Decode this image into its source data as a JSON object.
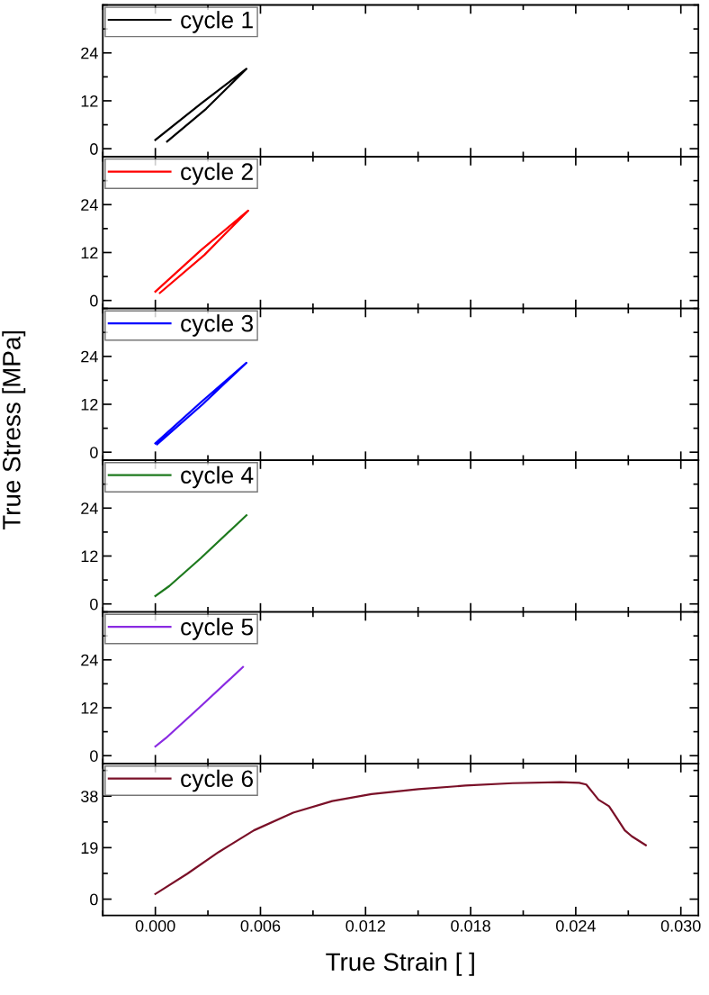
{
  "chart_data": [
    {
      "type": "line",
      "xlim": [
        -0.003,
        0.031
      ],
      "xticks": [
        0,
        0.006,
        0.012,
        0.018,
        0.024,
        0.03
      ],
      "ylim": [
        -2,
        36
      ],
      "yticks": [
        0,
        12,
        24
      ],
      "tick_labels": "y",
      "legend": "top left",
      "series": [
        {
          "name": "cycle 1",
          "color": "#000000",
          "x": [
            0.0,
            0.0026,
            0.0052,
            0.0029,
            0.00067
          ],
          "values": [
            2.2,
            11.3,
            20.0,
            10.0,
            1.8
          ]
        }
      ]
    },
    {
      "type": "line",
      "xlim": [
        -0.003,
        0.031
      ],
      "xticks": [
        0,
        0.006,
        0.012,
        0.018,
        0.024,
        0.03
      ],
      "ylim": [
        -2,
        36
      ],
      "yticks": [
        0,
        12,
        24
      ],
      "tick_labels": "y",
      "legend": "top left",
      "series": [
        {
          "name": "cycle 2",
          "color": "#ff0000",
          "x": [
            0.0,
            0.0026,
            0.0053,
            0.0028,
            0.00026
          ],
          "values": [
            2.2,
            12.6,
            22.5,
            11.4,
            1.9
          ]
        }
      ]
    },
    {
      "type": "line",
      "xlim": [
        -0.003,
        0.031
      ],
      "xticks": [
        0,
        0.006,
        0.012,
        0.018,
        0.024,
        0.03
      ],
      "ylim": [
        -2,
        36
      ],
      "yticks": [
        0,
        12,
        24
      ],
      "tick_labels": "y",
      "legend": "top left",
      "ylabel": "True Stress [MPa]",
      "series": [
        {
          "name": "cycle 3",
          "color": "#0000ff",
          "x": [
            0.0,
            0.0026,
            0.0052,
            0.0027,
            0.0001
          ],
          "values": [
            2.2,
            12.5,
            22.4,
            12.0,
            2.0
          ]
        }
      ]
    },
    {
      "type": "line",
      "xlim": [
        -0.003,
        0.031
      ],
      "xticks": [
        0,
        0.006,
        0.012,
        0.018,
        0.024,
        0.03
      ],
      "ylim": [
        -2,
        36
      ],
      "yticks": [
        0,
        12,
        24
      ],
      "tick_labels": "y",
      "legend": "top left",
      "series": [
        {
          "name": "cycle 4",
          "color": "#1e7a1e",
          "x": [
            0.0,
            0.0008,
            0.0026,
            0.0052
          ],
          "values": [
            2.0,
            4.5,
            11.5,
            22.2
          ]
        }
      ]
    },
    {
      "type": "line",
      "xlim": [
        -0.003,
        0.031
      ],
      "xticks": [
        0,
        0.006,
        0.012,
        0.018,
        0.024,
        0.03
      ],
      "ylim": [
        -2,
        36
      ],
      "yticks": [
        0,
        12,
        24
      ],
      "tick_labels": "y",
      "legend": "top left",
      "series": [
        {
          "name": "cycle 5",
          "color": "#8a2be2",
          "x": [
            0.0,
            0.0006,
            0.0025,
            0.005
          ],
          "values": [
            2.3,
            4.4,
            12.0,
            22.2
          ]
        }
      ]
    },
    {
      "type": "line",
      "xlabel": "True Strain [ ]",
      "xlim": [
        -0.003,
        0.031
      ],
      "xticks": [
        {
          "value": 0.0,
          "label": "0.000"
        },
        {
          "value": 0.006,
          "label": "0.006"
        },
        {
          "value": 0.012,
          "label": "0.012"
        },
        {
          "value": 0.018,
          "label": "0.018"
        },
        {
          "value": 0.024,
          "label": "0.024"
        },
        {
          "value": 0.03,
          "label": "0.030"
        }
      ],
      "ylim": [
        -6,
        50
      ],
      "yticks": [
        0,
        19,
        38
      ],
      "legend": "top left",
      "series": [
        {
          "name": "cycle 6",
          "color": "#7a1028",
          "x": [
            0.0,
            0.00183,
            0.00362,
            0.00563,
            0.00787,
            0.0101,
            0.01234,
            0.01502,
            0.0177,
            0.0204,
            0.0231,
            0.0242,
            0.0246,
            0.025,
            0.0253,
            0.0259,
            0.0263,
            0.0268,
            0.0272,
            0.028
          ],
          "values": [
            1.9,
            9.4,
            17.4,
            25.4,
            31.9,
            36.2,
            38.8,
            40.6,
            41.9,
            42.8,
            43.2,
            42.9,
            42.3,
            39.1,
            36.7,
            34.3,
            30.4,
            25.4,
            23.2,
            19.9
          ]
        }
      ]
    }
  ]
}
